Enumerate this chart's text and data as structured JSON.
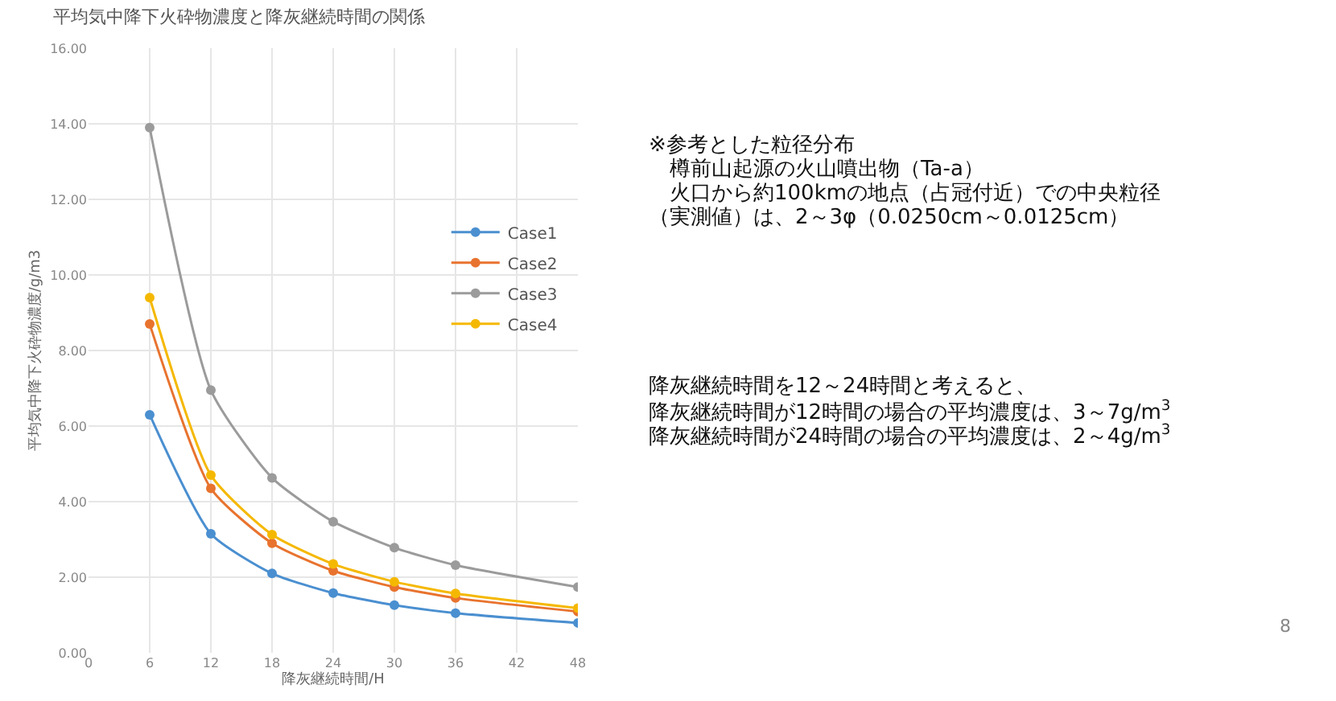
{
  "chart_data": {
    "type": "line",
    "title": "平均気中降下火砕物濃度と降灰継続時間の関係",
    "xlabel": "降灰継続時間/H",
    "ylabel": "平均気中降下火砕物濃度/g/m3",
    "x": [
      6,
      12,
      18,
      24,
      30,
      36,
      48
    ],
    "series": [
      {
        "name": "Case1",
        "color": "#4a8fd0",
        "values": [
          6.3,
          3.15,
          2.1,
          1.58,
          1.26,
          1.05,
          0.79
        ]
      },
      {
        "name": "Case2",
        "color": "#e8732e",
        "values": [
          8.7,
          4.35,
          2.9,
          2.17,
          1.74,
          1.45,
          1.09
        ]
      },
      {
        "name": "Case3",
        "color": "#9b9b9b",
        "values": [
          13.9,
          6.95,
          4.63,
          3.47,
          2.78,
          2.32,
          1.74
        ]
      },
      {
        "name": "Case4",
        "color": "#f5b800",
        "values": [
          9.4,
          4.7,
          3.13,
          2.35,
          1.88,
          1.57,
          1.18
        ]
      }
    ],
    "xlim": [
      0,
      48
    ],
    "xticks": [
      0,
      6,
      12,
      18,
      24,
      30,
      36,
      42,
      48
    ],
    "ylim": [
      0,
      16
    ],
    "yticks": [
      {
        "value": 0,
        "label": "0.00"
      },
      {
        "value": 2,
        "label": "2.00"
      },
      {
        "value": 4,
        "label": "4.00"
      },
      {
        "value": 6,
        "label": "6.00"
      },
      {
        "value": 8,
        "label": "8.00"
      },
      {
        "value": 10,
        "label": "10.00"
      },
      {
        "value": 12,
        "label": "12.00"
      },
      {
        "value": 14,
        "label": "14.00"
      },
      {
        "value": 16,
        "label": "16.00"
      }
    ],
    "grid": true,
    "legend": "right",
    "marker": "circle",
    "line_style": "solid",
    "annotations": [
      "※参考とした粒径分布",
      "　樽前山起源の火山噴出物（Ta-a）",
      "　火口から約100kmの地点（占冠付近）での中央粒径",
      "（実測値）は、2～3φ（0.0250cm～0.0125cm）",
      "降灰継続時間を12～24時間と考えると、",
      "降灰継続時間が12時間の場合の平均濃度は、3～7g/m$^{3}$",
      "降灰継続時間が24時間の場合の平均濃度は、2～4g/m$^{3}$",
      "8"
    ]
  }
}
